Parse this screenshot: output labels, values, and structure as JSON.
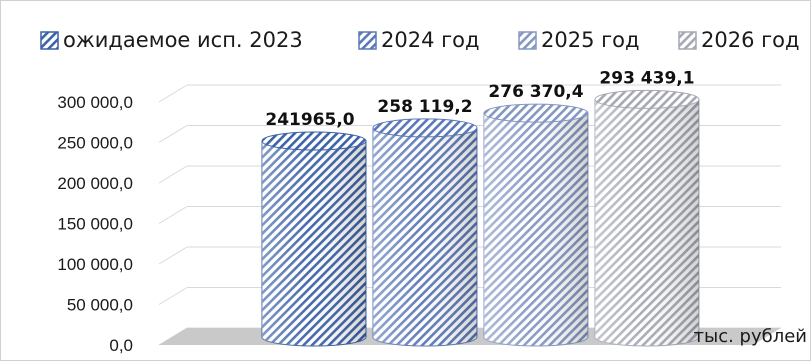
{
  "chart_data": {
    "type": "bar",
    "shape": "cylinder-3d",
    "categories": [
      "ожидаемое исп. 2023",
      "2024 год",
      "2025 год",
      "2026 год"
    ],
    "values": [
      241965.0,
      258119.2,
      276370.4,
      293439.1
    ],
    "data_labels": [
      "241965,0",
      "258 119,2",
      "276 370,4",
      "293 439,1"
    ],
    "series": [
      {
        "name": "ожидаемое исп. 2023",
        "color": "#3c62a8"
      },
      {
        "name": "2024 год",
        "color": "#5b78b8"
      },
      {
        "name": "2025 год",
        "color": "#8497c3"
      },
      {
        "name": "2026 год",
        "color": "#a6a9b4"
      }
    ],
    "ylim": [
      0,
      300000
    ],
    "yticks": [
      0,
      50000,
      100000,
      150000,
      200000,
      250000,
      300000
    ],
    "ytick_labels": [
      "0,0",
      "50 000,0",
      "100 000,0",
      "150 000,0",
      "200 000,0",
      "250 000,0",
      "300 000,0"
    ],
    "unit_label": "тыс. рублей",
    "legend_position": "top",
    "grid": true
  }
}
